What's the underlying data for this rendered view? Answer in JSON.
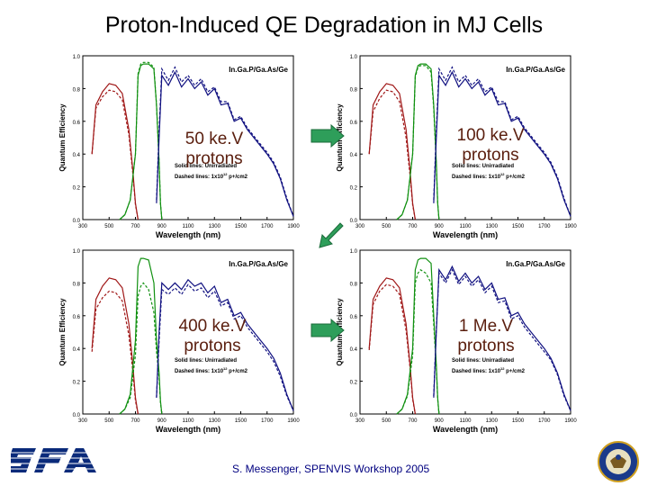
{
  "title": "Proton-Induced QE Degradation in MJ Cells",
  "footer": "S. Messenger, SPENVIS Workshop 2005",
  "colors": {
    "ingap": "#a01818",
    "gaas": "#109010",
    "ge": "#101080",
    "overlay_text": "#5a1e0e",
    "arrow": "#2e9e5a"
  },
  "icons": {
    "left_logo": "sfa-logo",
    "right_logo": "department-seal"
  },
  "chart_data": [
    {
      "type": "line",
      "overlay_label": "50 ke.V protons",
      "legend_title": "In.Ga.P/Ga.As/Ge",
      "note_line1": "Solid lines: Unirradiated",
      "note_line2": "Dashed lines: 1x10",
      "note_exp": "12",
      "note_tail": " p+/cm2",
      "xlabel": "Wavelength (nm)",
      "ylabel": "Quantum Efficiency",
      "xlim": [
        300,
        1900
      ],
      "ylim": [
        0,
        1.0
      ],
      "xticks": [
        "300",
        "500",
        "700",
        "900",
        "1100",
        "1300",
        "1500",
        "1700",
        "1900"
      ],
      "yticks": [
        "0.0",
        "0.2",
        "0.4",
        "0.6",
        "0.8",
        "1.0"
      ],
      "series": [
        {
          "style": "solid",
          "color": "ingap",
          "x": [
            370,
            400,
            450,
            500,
            550,
            600,
            650,
            680,
            700,
            720
          ],
          "y": [
            0.4,
            0.7,
            0.78,
            0.83,
            0.82,
            0.77,
            0.55,
            0.3,
            0.1,
            0.0
          ]
        },
        {
          "style": "dashed",
          "color": "ingap",
          "x": [
            370,
            400,
            450,
            500,
            550,
            600,
            650,
            680,
            700,
            720
          ],
          "y": [
            0.4,
            0.68,
            0.75,
            0.79,
            0.78,
            0.73,
            0.52,
            0.28,
            0.09,
            0.0
          ]
        },
        {
          "style": "solid",
          "color": "gaas",
          "x": [
            580,
            620,
            660,
            700,
            720,
            740,
            760,
            800,
            840,
            860,
            880,
            890,
            900
          ],
          "y": [
            0.0,
            0.03,
            0.12,
            0.4,
            0.88,
            0.94,
            0.95,
            0.95,
            0.92,
            0.7,
            0.35,
            0.1,
            0.0
          ]
        },
        {
          "style": "dashed",
          "color": "gaas",
          "x": [
            580,
            620,
            660,
            700,
            720,
            740,
            760,
            800,
            840,
            860,
            880,
            890,
            900
          ],
          "y": [
            0.0,
            0.03,
            0.12,
            0.4,
            0.89,
            0.95,
            0.96,
            0.96,
            0.93,
            0.7,
            0.35,
            0.1,
            0.0
          ]
        },
        {
          "style": "solid",
          "color": "ge",
          "x": [
            860,
            880,
            900,
            950,
            1000,
            1050,
            1100,
            1150,
            1200,
            1250,
            1300,
            1350,
            1400,
            1450,
            1500,
            1550,
            1600,
            1650,
            1700,
            1750,
            1800,
            1850,
            1900
          ],
          "y": [
            0.1,
            0.5,
            0.88,
            0.82,
            0.9,
            0.81,
            0.86,
            0.8,
            0.84,
            0.76,
            0.8,
            0.7,
            0.71,
            0.6,
            0.62,
            0.55,
            0.5,
            0.45,
            0.4,
            0.34,
            0.25,
            0.12,
            0.02
          ]
        },
        {
          "style": "dashed",
          "color": "ge",
          "x": [
            860,
            880,
            900,
            950,
            1000,
            1050,
            1100,
            1150,
            1200,
            1250,
            1300,
            1350,
            1400,
            1450,
            1500,
            1550,
            1600,
            1650,
            1700,
            1750,
            1800,
            1850,
            1900
          ],
          "y": [
            0.12,
            0.55,
            0.92,
            0.85,
            0.93,
            0.84,
            0.88,
            0.82,
            0.86,
            0.78,
            0.81,
            0.72,
            0.72,
            0.61,
            0.63,
            0.56,
            0.51,
            0.46,
            0.41,
            0.35,
            0.26,
            0.13,
            0.02
          ]
        }
      ]
    },
    {
      "type": "line",
      "overlay_label": "100 ke.V protons",
      "legend_title": "In.Ga.P/Ga.As/Ge",
      "note_line1": "Solid lines: Unirradiated",
      "note_line2": "Dashed lines: 1x10",
      "note_exp": "12",
      "note_tail": " p+/cm2",
      "xlabel": "Wavelength (nm)",
      "ylabel": "Quantum Efficiency",
      "xlim": [
        300,
        1900
      ],
      "ylim": [
        0,
        1.0
      ],
      "xticks": [
        "300",
        "500",
        "700",
        "900",
        "1100",
        "1300",
        "1500",
        "1700",
        "1900"
      ],
      "yticks": [
        "0.0",
        "0.2",
        "0.4",
        "0.6",
        "0.8",
        "1.0"
      ],
      "series": [
        {
          "style": "solid",
          "color": "ingap",
          "x": [
            370,
            400,
            450,
            500,
            550,
            600,
            650,
            680,
            700,
            720
          ],
          "y": [
            0.4,
            0.7,
            0.78,
            0.83,
            0.82,
            0.77,
            0.55,
            0.3,
            0.1,
            0.0
          ]
        },
        {
          "style": "dashed",
          "color": "ingap",
          "x": [
            370,
            400,
            450,
            500,
            550,
            600,
            650,
            680,
            700,
            720
          ],
          "y": [
            0.4,
            0.66,
            0.74,
            0.79,
            0.78,
            0.72,
            0.5,
            0.27,
            0.09,
            0.0
          ]
        },
        {
          "style": "solid",
          "color": "gaas",
          "x": [
            580,
            620,
            660,
            700,
            720,
            740,
            760,
            800,
            840,
            860,
            880,
            890,
            900
          ],
          "y": [
            0.0,
            0.03,
            0.12,
            0.4,
            0.88,
            0.94,
            0.95,
            0.95,
            0.92,
            0.7,
            0.35,
            0.1,
            0.0
          ]
        },
        {
          "style": "dashed",
          "color": "gaas",
          "x": [
            580,
            620,
            660,
            700,
            720,
            740,
            760,
            800,
            840,
            860,
            880,
            890,
            900
          ],
          "y": [
            0.0,
            0.03,
            0.12,
            0.4,
            0.87,
            0.93,
            0.94,
            0.94,
            0.9,
            0.68,
            0.33,
            0.1,
            0.0
          ]
        },
        {
          "style": "solid",
          "color": "ge",
          "x": [
            860,
            880,
            900,
            950,
            1000,
            1050,
            1100,
            1150,
            1200,
            1250,
            1300,
            1350,
            1400,
            1450,
            1500,
            1550,
            1600,
            1650,
            1700,
            1750,
            1800,
            1850,
            1900
          ],
          "y": [
            0.1,
            0.5,
            0.88,
            0.82,
            0.9,
            0.81,
            0.86,
            0.8,
            0.84,
            0.76,
            0.8,
            0.7,
            0.71,
            0.6,
            0.62,
            0.55,
            0.5,
            0.45,
            0.4,
            0.34,
            0.25,
            0.12,
            0.02
          ]
        },
        {
          "style": "dashed",
          "color": "ge",
          "x": [
            860,
            880,
            900,
            950,
            1000,
            1050,
            1100,
            1150,
            1200,
            1250,
            1300,
            1350,
            1400,
            1450,
            1500,
            1550,
            1600,
            1650,
            1700,
            1750,
            1800,
            1850,
            1900
          ],
          "y": [
            0.12,
            0.55,
            0.92,
            0.85,
            0.93,
            0.84,
            0.88,
            0.82,
            0.86,
            0.78,
            0.81,
            0.72,
            0.72,
            0.61,
            0.63,
            0.56,
            0.51,
            0.46,
            0.41,
            0.35,
            0.26,
            0.13,
            0.02
          ]
        }
      ]
    },
    {
      "type": "line",
      "overlay_label": "400 ke.V protons",
      "legend_title": "In.Ga.P/Ga.As/Ge",
      "note_line1": "Solid lines: Unirradiated",
      "note_line2": "Dashed lines: 1x10",
      "note_exp": "12",
      "note_tail": " p+/cm2",
      "xlabel": "Wavelength (nm)",
      "ylabel": "Quantum Efficiency",
      "xlim": [
        300,
        1900
      ],
      "ylim": [
        0,
        1.0
      ],
      "xticks": [
        "300",
        "500",
        "700",
        "900",
        "1100",
        "1300",
        "1500",
        "1700",
        "1900"
      ],
      "yticks": [
        "0.0",
        "0.2",
        "0.4",
        "0.6",
        "0.8",
        "1.0"
      ],
      "series": [
        {
          "style": "solid",
          "color": "ingap",
          "x": [
            370,
            400,
            450,
            500,
            550,
            600,
            650,
            680,
            700,
            720
          ],
          "y": [
            0.4,
            0.7,
            0.78,
            0.83,
            0.82,
            0.77,
            0.55,
            0.3,
            0.1,
            0.0
          ]
        },
        {
          "style": "dashed",
          "color": "ingap",
          "x": [
            370,
            400,
            450,
            500,
            550,
            600,
            650,
            680,
            700,
            720
          ],
          "y": [
            0.38,
            0.64,
            0.71,
            0.75,
            0.74,
            0.69,
            0.48,
            0.26,
            0.08,
            0.0
          ]
        },
        {
          "style": "solid",
          "color": "gaas",
          "x": [
            580,
            620,
            660,
            700,
            720,
            740,
            760,
            800,
            840,
            860,
            880,
            890,
            900
          ],
          "y": [
            0.0,
            0.03,
            0.12,
            0.45,
            0.9,
            0.95,
            0.95,
            0.94,
            0.8,
            0.45,
            0.25,
            0.08,
            0.0
          ]
        },
        {
          "style": "dashed",
          "color": "gaas",
          "x": [
            580,
            620,
            660,
            700,
            720,
            740,
            760,
            800,
            840,
            860,
            880,
            890,
            900
          ],
          "y": [
            0.0,
            0.03,
            0.1,
            0.36,
            0.72,
            0.78,
            0.8,
            0.76,
            0.62,
            0.38,
            0.22,
            0.07,
            0.0
          ]
        },
        {
          "style": "solid",
          "color": "ge",
          "x": [
            860,
            880,
            900,
            950,
            1000,
            1050,
            1100,
            1150,
            1200,
            1250,
            1300,
            1350,
            1400,
            1450,
            1500,
            1550,
            1600,
            1650,
            1700,
            1750,
            1800,
            1850,
            1900
          ],
          "y": [
            0.1,
            0.5,
            0.8,
            0.76,
            0.8,
            0.76,
            0.82,
            0.78,
            0.8,
            0.74,
            0.78,
            0.68,
            0.7,
            0.6,
            0.62,
            0.55,
            0.5,
            0.45,
            0.4,
            0.34,
            0.25,
            0.12,
            0.02
          ]
        },
        {
          "style": "dashed",
          "color": "ge",
          "x": [
            860,
            880,
            900,
            950,
            1000,
            1050,
            1100,
            1150,
            1200,
            1250,
            1300,
            1350,
            1400,
            1450,
            1500,
            1550,
            1600,
            1650,
            1700,
            1750,
            1800,
            1850,
            1900
          ],
          "y": [
            0.1,
            0.45,
            0.76,
            0.73,
            0.77,
            0.73,
            0.79,
            0.75,
            0.77,
            0.71,
            0.75,
            0.66,
            0.68,
            0.58,
            0.6,
            0.53,
            0.48,
            0.43,
            0.38,
            0.32,
            0.23,
            0.11,
            0.02
          ]
        }
      ]
    },
    {
      "type": "line",
      "overlay_label": "1 Me.V protons",
      "legend_title": "In.Ga.P/Ga.As/Ge",
      "note_line1": "Solid lines: Unirradiated",
      "note_line2": "Dashed lines: 1x10",
      "note_exp": "12",
      "note_tail": " p+/cm2",
      "xlabel": "Wavelength (nm)",
      "ylabel": "Quantum Efficiency",
      "xlim": [
        300,
        1900
      ],
      "ylim": [
        0,
        1.0
      ],
      "xticks": [
        "300",
        "500",
        "700",
        "900",
        "1100",
        "1300",
        "1500",
        "1700",
        "1900"
      ],
      "yticks": [
        "0.0",
        "0.2",
        "0.4",
        "0.6",
        "0.8",
        "1.0"
      ],
      "series": [
        {
          "style": "solid",
          "color": "ingap",
          "x": [
            370,
            400,
            450,
            500,
            550,
            600,
            650,
            680,
            700,
            720
          ],
          "y": [
            0.4,
            0.7,
            0.78,
            0.83,
            0.82,
            0.77,
            0.55,
            0.3,
            0.1,
            0.0
          ]
        },
        {
          "style": "dashed",
          "color": "ingap",
          "x": [
            370,
            400,
            450,
            500,
            550,
            600,
            650,
            680,
            700,
            720
          ],
          "y": [
            0.39,
            0.67,
            0.75,
            0.79,
            0.78,
            0.73,
            0.51,
            0.28,
            0.09,
            0.0
          ]
        },
        {
          "style": "solid",
          "color": "gaas",
          "x": [
            580,
            620,
            660,
            700,
            720,
            740,
            760,
            800,
            840,
            860,
            880,
            890,
            900
          ],
          "y": [
            0.0,
            0.03,
            0.12,
            0.4,
            0.88,
            0.94,
            0.95,
            0.95,
            0.92,
            0.6,
            0.3,
            0.1,
            0.0
          ]
        },
        {
          "style": "dashed",
          "color": "gaas",
          "x": [
            580,
            620,
            660,
            700,
            720,
            740,
            760,
            800,
            840,
            860,
            880,
            890,
            900
          ],
          "y": [
            0.0,
            0.03,
            0.11,
            0.36,
            0.8,
            0.86,
            0.88,
            0.86,
            0.8,
            0.55,
            0.28,
            0.09,
            0.0
          ]
        },
        {
          "style": "solid",
          "color": "ge",
          "x": [
            860,
            880,
            900,
            950,
            1000,
            1050,
            1100,
            1150,
            1200,
            1250,
            1300,
            1350,
            1400,
            1450,
            1500,
            1550,
            1600,
            1650,
            1700,
            1750,
            1800,
            1850,
            1900
          ],
          "y": [
            0.1,
            0.5,
            0.88,
            0.82,
            0.9,
            0.81,
            0.86,
            0.8,
            0.84,
            0.76,
            0.8,
            0.7,
            0.71,
            0.6,
            0.62,
            0.55,
            0.5,
            0.45,
            0.4,
            0.34,
            0.25,
            0.12,
            0.02
          ]
        },
        {
          "style": "dashed",
          "color": "ge",
          "x": [
            860,
            880,
            900,
            950,
            1000,
            1050,
            1100,
            1150,
            1200,
            1250,
            1300,
            1350,
            1400,
            1450,
            1500,
            1550,
            1600,
            1650,
            1700,
            1750,
            1800,
            1850,
            1900
          ],
          "y": [
            0.11,
            0.52,
            0.86,
            0.8,
            0.88,
            0.79,
            0.84,
            0.78,
            0.82,
            0.74,
            0.78,
            0.68,
            0.69,
            0.58,
            0.6,
            0.53,
            0.48,
            0.43,
            0.38,
            0.33,
            0.24,
            0.11,
            0.02
          ]
        }
      ]
    }
  ]
}
